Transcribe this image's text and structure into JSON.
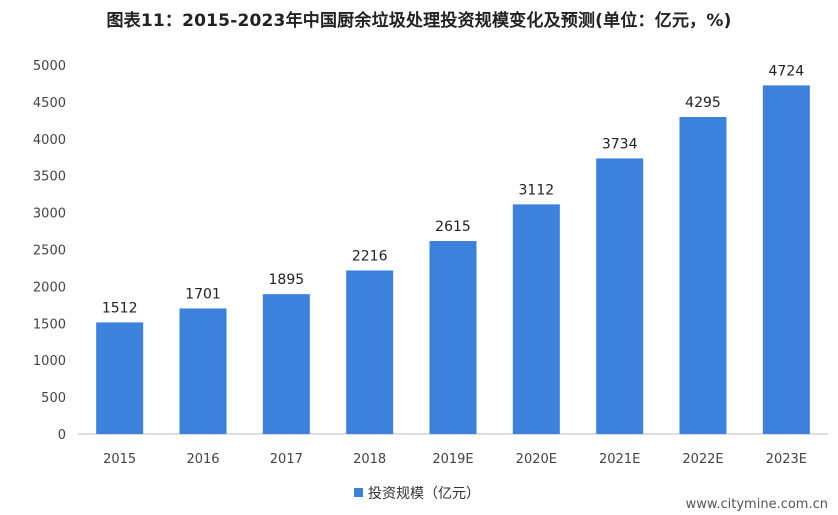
{
  "chart_data": {
    "type": "bar",
    "title": "图表11：2015-2023年中国厨余垃圾处理投资规模变化及预测(单位：亿元，%)",
    "categories": [
      "2015",
      "2016",
      "2017",
      "2018",
      "2019E",
      "2020E",
      "2021E",
      "2022E",
      "2023E"
    ],
    "series": [
      {
        "name": "投资规模（亿元）",
        "values": [
          1512,
          1701,
          1895,
          2216,
          2615,
          3112,
          3734,
          4295,
          4724
        ]
      }
    ],
    "ylim": [
      0,
      5000
    ],
    "yticks": [
      0,
      500,
      1000,
      1500,
      2000,
      2500,
      3000,
      3500,
      4000,
      4500,
      5000
    ],
    "xlabel": "",
    "ylabel": "",
    "grid": false,
    "legend": "bottom",
    "data_labels": true,
    "colors": {
      "bar": "#3c82dc",
      "axis": "#bfbfbf",
      "text": "#222222"
    }
  },
  "watermark": {
    "site": "www.citymine.com.cn"
  }
}
